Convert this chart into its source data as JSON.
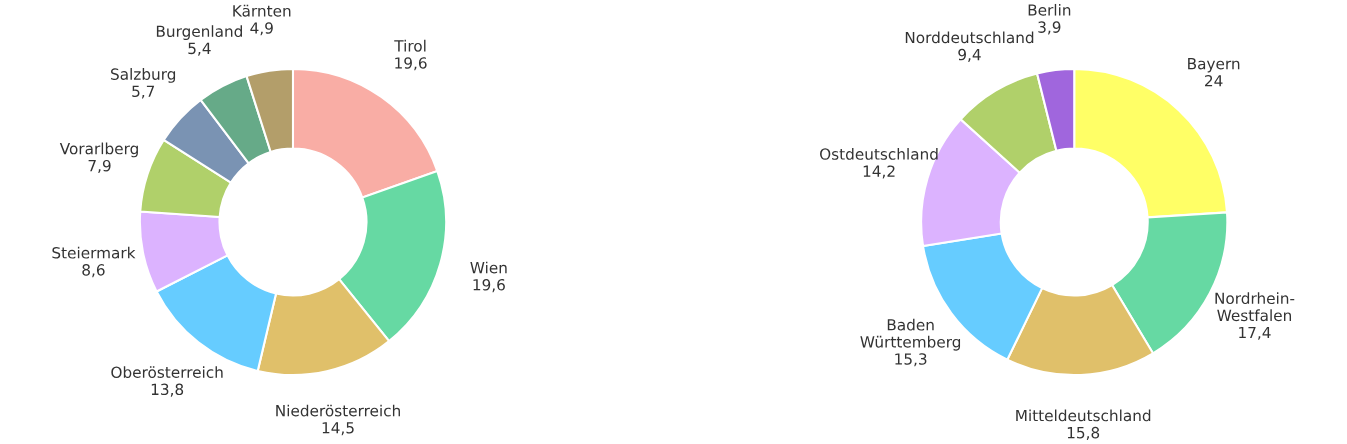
{
  "chart_data": [
    {
      "type": "donut",
      "categories": [
        "Tirol",
        "Wien",
        "Niederösterreich",
        "Oberösterreich",
        "Steiermark",
        "Vorarlberg",
        "Salzburg",
        "Burgenland",
        "Kärnten"
      ],
      "values": [
        19.6,
        19.6,
        14.5,
        13.8,
        8.6,
        7.9,
        5.7,
        5.4,
        4.9
      ],
      "value_labels": [
        "19,6",
        "19,6",
        "14,5",
        "13,8",
        "8,6",
        "7,9",
        "5,7",
        "5,4",
        "4,9"
      ],
      "colors": [
        "#f9ada5",
        "#66d9a3",
        "#e0c06a",
        "#66ccff",
        "#dcb3ff",
        "#b0d06a",
        "#7a93b3",
        "#66aa88",
        "#b39e6a"
      ],
      "legend": false
    },
    {
      "type": "donut",
      "categories": [
        "Bayern",
        "Nordrhein-\nWestfalen",
        "Mitteldeutschland",
        "Baden\nWürttemberg",
        "Ostdeutschland",
        "Norddeutschland",
        "Berlin"
      ],
      "values": [
        24,
        17.4,
        15.8,
        15.3,
        14.2,
        9.4,
        3.9
      ],
      "value_labels": [
        "24",
        "17,4",
        "15,8",
        "15,3",
        "14,2",
        "9,4",
        "3,9"
      ],
      "colors": [
        "#ffff66",
        "#66d9a3",
        "#e0c06a",
        "#66ccff",
        "#dcb3ff",
        "#b0d06a",
        "#a066dd"
      ],
      "legend": false
    }
  ]
}
